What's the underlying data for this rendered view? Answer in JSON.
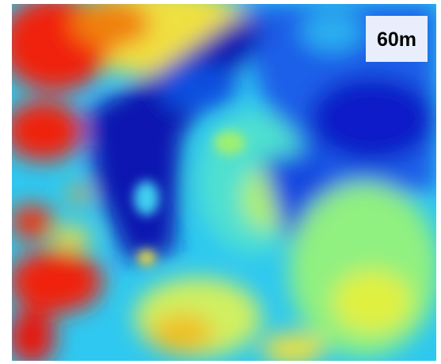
{
  "label": "60m"
}
